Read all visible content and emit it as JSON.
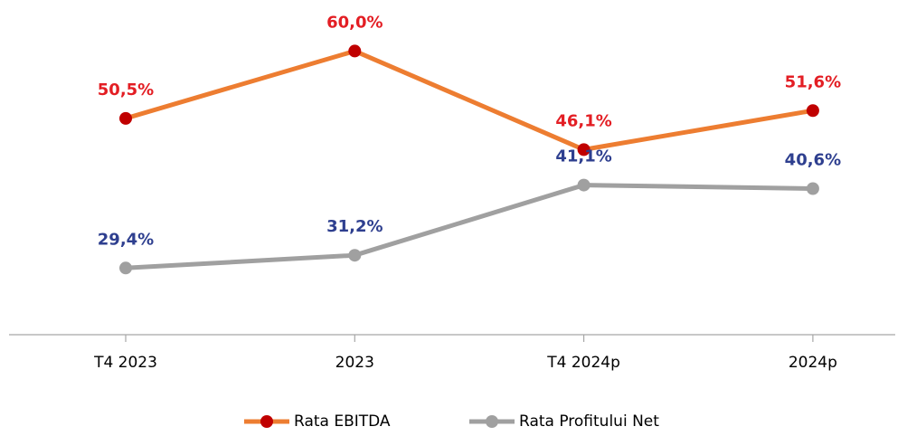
{
  "chart_data": {
    "type": "line",
    "categories": [
      "T4 2023",
      "2023",
      "T4 2024p",
      "2024p"
    ],
    "ylim": [
      20,
      70
    ],
    "series": [
      {
        "name": "Rata EBITDA",
        "color": "#ed7d31",
        "marker_color": "#c00000",
        "label_color": "#e31e24",
        "values": [
          50.5,
          60.0,
          46.1,
          51.6
        ],
        "value_labels": [
          "50,5%",
          "60,0%",
          "46,1%",
          "51,6%"
        ]
      },
      {
        "name": "Rata Profitului Net",
        "color": "#a0a0a0",
        "marker_color": "#a0a0a0",
        "label_color": "#2e3f8f",
        "values": [
          29.4,
          31.2,
          41.1,
          40.6
        ],
        "value_labels": [
          "29,4%",
          "31,2%",
          "41,1%",
          "40,6%"
        ]
      }
    ]
  }
}
